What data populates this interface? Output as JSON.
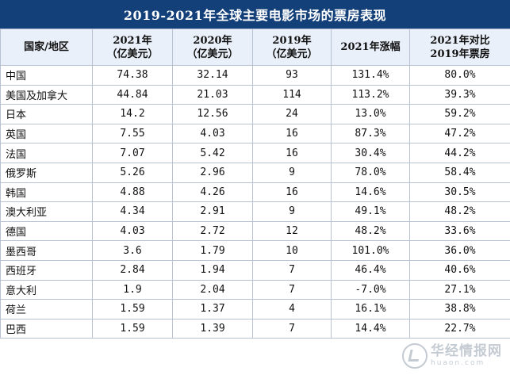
{
  "title": "2019-2021年全球主要电影市场的票房表现",
  "headers": [
    [
      "国家/地区"
    ],
    [
      "2021年",
      "（亿美元）"
    ],
    [
      "2020年",
      "（亿美元）"
    ],
    [
      "2019年",
      "（亿美元）"
    ],
    [
      "2021年涨幅"
    ],
    [
      "2021年对比",
      "2019年票房"
    ]
  ],
  "rows": [
    [
      "中国",
      "74.38",
      "32.14",
      "93",
      "131.4%",
      "80.0%"
    ],
    [
      "美国及加拿大",
      "44.84",
      "21.03",
      "114",
      "113.2%",
      "39.3%"
    ],
    [
      "日本",
      "14.2",
      "12.56",
      "24",
      "13.0%",
      "59.2%"
    ],
    [
      "英国",
      "7.55",
      "4.03",
      "16",
      "87.3%",
      "47.2%"
    ],
    [
      "法国",
      "7.07",
      "5.42",
      "16",
      "30.4%",
      "44.2%"
    ],
    [
      "俄罗斯",
      "5.26",
      "2.96",
      "9",
      "78.0%",
      "58.4%"
    ],
    [
      "韩国",
      "4.88",
      "4.26",
      "16",
      "14.6%",
      "30.5%"
    ],
    [
      "澳大利亚",
      "4.34",
      "2.91",
      "9",
      "49.1%",
      "48.2%"
    ],
    [
      "德国",
      "4.03",
      "2.72",
      "12",
      "48.2%",
      "33.6%"
    ],
    [
      "墨西哥",
      "3.6",
      "1.79",
      "10",
      "101.0%",
      "36.0%"
    ],
    [
      "西班牙",
      "2.84",
      "1.94",
      "7",
      "46.4%",
      "40.6%"
    ],
    [
      "意大利",
      "1.9",
      "2.04",
      "7",
      "-7.0%",
      "27.1%"
    ],
    [
      "荷兰",
      "1.59",
      "1.37",
      "4",
      "16.1%",
      "38.8%"
    ],
    [
      "巴西",
      "1.59",
      "1.39",
      "7",
      "14.4%",
      "22.7%"
    ]
  ],
  "watermark": {
    "cn": "华经情报网",
    "en": "huaon.com"
  },
  "colors": {
    "title_bg": "#14407a",
    "header_bg": "#eaf0f9",
    "border": "#b7c2d2"
  }
}
